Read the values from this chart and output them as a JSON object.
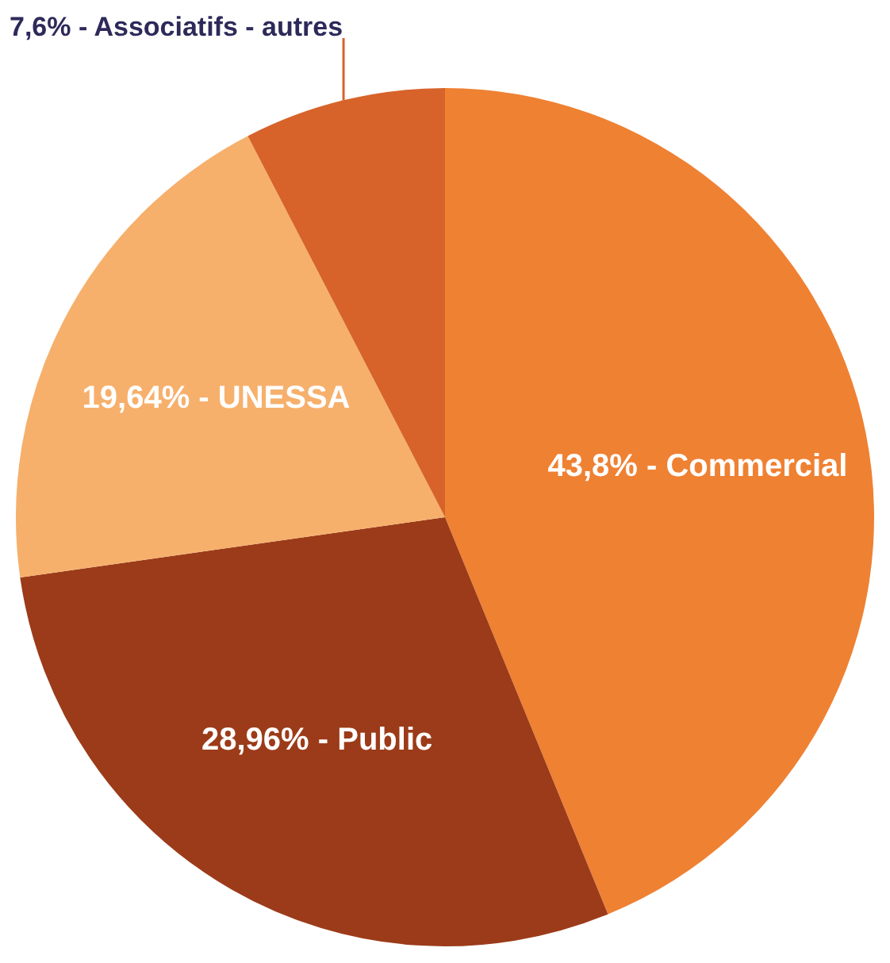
{
  "chart_data": {
    "type": "pie",
    "categories": [
      "Commercial",
      "Public",
      "UNESSA",
      "Associatifs - autres"
    ],
    "values": [
      43.8,
      28.96,
      19.64,
      7.6
    ],
    "value_labels": [
      "43,8%",
      "28,96%",
      "19,64%",
      "7,6%"
    ],
    "colors": [
      "#ef8133",
      "#9c3b19",
      "#f6b06c",
      "#d7632a"
    ],
    "legend": false
  }
}
